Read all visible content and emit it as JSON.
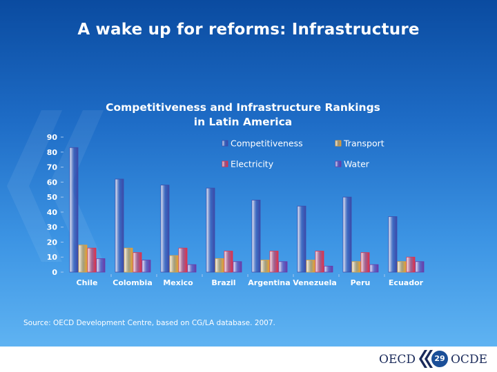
{
  "slide": {
    "title": "A wake up for reforms: Infrastructure",
    "source": "Source: OECD Development Centre, based on CG/LA database. 2007.",
    "page_number": "29",
    "footer_left": "OECD",
    "footer_right": "OCDE"
  },
  "chart_data": {
    "type": "bar",
    "title": "Competitiveness and Infrastructure Rankings in Latin America",
    "title_lines": [
      "Competitiveness and Infrastructure Rankings",
      "in Latin America"
    ],
    "categories": [
      "Chile",
      "Colombia",
      "Mexico",
      "Brazil",
      "Argentina",
      "Venezuela",
      "Peru",
      "Ecuador"
    ],
    "y_ticks": [
      "0",
      "10",
      "20",
      "30",
      "40",
      "50",
      "60",
      "70",
      "80",
      "90"
    ],
    "ylim": [
      0,
      90
    ],
    "grid": false,
    "legend_position": "top-right",
    "series": [
      {
        "name": "Competitiveness",
        "color": "#3d4aa8",
        "values": [
          83,
          62,
          58,
          56,
          48,
          44,
          50,
          37
        ]
      },
      {
        "name": "Transport",
        "color": "#e8a030",
        "values": [
          18,
          16,
          11,
          9,
          8,
          8,
          7,
          7
        ]
      },
      {
        "name": "Electricity",
        "color": "#e0304a",
        "values": [
          16,
          13,
          16,
          14,
          14,
          14,
          13,
          10
        ]
      },
      {
        "name": "Water",
        "color": "#6a3aa8",
        "values": [
          9,
          8,
          5,
          7,
          7,
          4,
          5,
          7
        ]
      }
    ]
  }
}
